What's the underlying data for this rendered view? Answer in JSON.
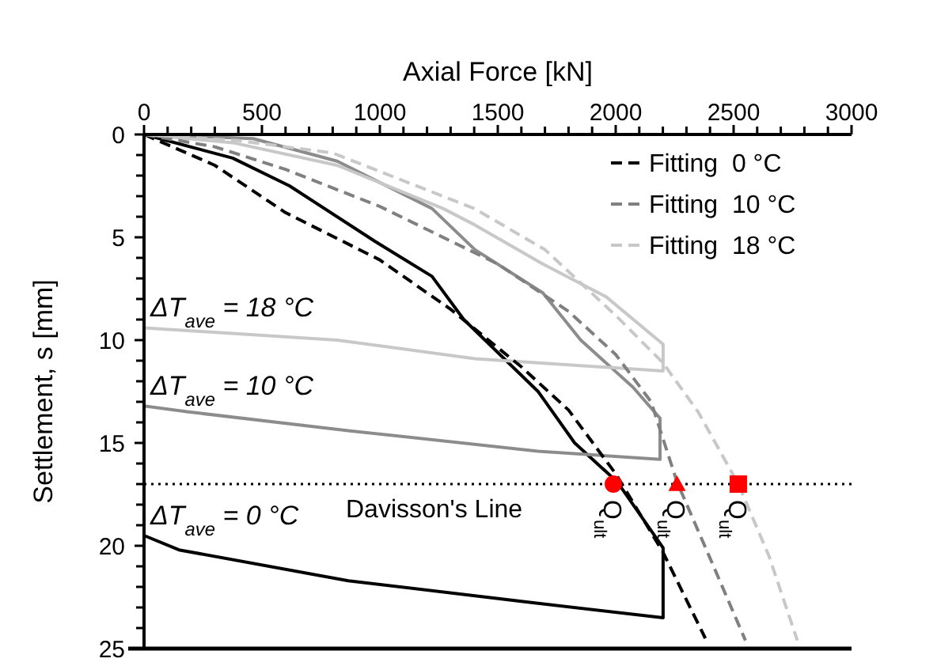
{
  "chart_data": {
    "type": "line",
    "xlabel": "Axial Force [kN]",
    "ylabel": "Settlement, s [mm]",
    "xlim": [
      0,
      3000
    ],
    "ylim": [
      25,
      0
    ],
    "xticks": [
      0,
      {
        "value": 100,
        "label": null
      },
      {
        "value": 200,
        "label": null
      },
      {
        "value": 300,
        "label": null
      },
      {
        "value": 400,
        "label": null
      },
      500,
      {
        "value": 600,
        "label": null
      },
      {
        "value": 700,
        "label": null
      },
      {
        "value": 800,
        "label": null
      },
      {
        "value": 900,
        "label": null
      },
      1000,
      {
        "value": 1100,
        "label": null
      },
      {
        "value": 1200,
        "label": null
      },
      {
        "value": 1300,
        "label": null
      },
      {
        "value": 1400,
        "label": null
      },
      1500,
      {
        "value": 1600,
        "label": null
      },
      {
        "value": 1700,
        "label": null
      },
      {
        "value": 1800,
        "label": null
      },
      {
        "value": 1900,
        "label": null
      },
      2000,
      {
        "value": 2100,
        "label": null
      },
      {
        "value": 2200,
        "label": null
      },
      {
        "value": 2300,
        "label": null
      },
      {
        "value": 2400,
        "label": null
      },
      2500,
      {
        "value": 2600,
        "label": null
      },
      {
        "value": 2700,
        "label": null
      },
      {
        "value": 2800,
        "label": null
      },
      {
        "value": 2900,
        "label": null
      },
      3000
    ],
    "yticks": [
      0,
      {
        "value": 1,
        "label": null
      },
      {
        "value": 2,
        "label": null
      },
      {
        "value": 3,
        "label": null
      },
      {
        "value": 4,
        "label": null
      },
      5,
      {
        "value": 6,
        "label": null
      },
      {
        "value": 7,
        "label": null
      },
      {
        "value": 8,
        "label": null
      },
      {
        "value": 9,
        "label": null
      },
      10,
      {
        "value": 11,
        "label": null
      },
      {
        "value": 12,
        "label": null
      },
      {
        "value": 13,
        "label": null
      },
      {
        "value": 14,
        "label": null
      },
      15,
      {
        "value": 16,
        "label": null
      },
      {
        "value": 17,
        "label": null
      },
      {
        "value": 18,
        "label": null
      },
      {
        "value": 19,
        "label": null
      },
      20,
      {
        "value": 21,
        "label": null
      },
      {
        "value": 22,
        "label": null
      },
      {
        "value": 23,
        "label": null
      },
      {
        "value": 24,
        "label": null
      },
      25
    ],
    "grid": false,
    "legend": "top right",
    "series": [
      {
        "color": "#000000",
        "line_style": "solid",
        "x": [
          0,
          376,
          617,
          980,
          1221,
          1356,
          1671,
          1826,
          2007,
          2201,
          2201,
          1671,
          866,
          148,
          0
        ],
        "values": [
          0,
          1.15,
          2.5,
          5.2,
          6.9,
          9.0,
          12.5,
          15.0,
          16.9,
          20.1,
          23.5,
          22.8,
          21.7,
          20.2,
          19.5
        ]
      },
      {
        "color": "#8c8c8c",
        "line_style": "solid",
        "x": [
          0,
          463,
          819,
          1221,
          1403,
          1691,
          1852,
          2074,
          2188,
          2188,
          1671,
          866,
          195,
          0
        ],
        "values": [
          0,
          0.2,
          1.3,
          3.6,
          5.6,
          7.7,
          10.0,
          12.3,
          13.8,
          15.8,
          15.4,
          14.4,
          13.5,
          13.2
        ]
      },
      {
        "color": "#c8c8c8",
        "line_style": "solid",
        "x": [
          0,
          376,
          819,
          1268,
          1403,
          1691,
          1960,
          2201,
          2201,
          1403,
          819,
          0
        ],
        "values": [
          0,
          0.4,
          1.5,
          3.6,
          4.4,
          6.3,
          7.9,
          10.2,
          11.5,
          10.9,
          10.0,
          9.4
        ]
      },
      {
        "name": "Fitting  0 °C",
        "color": "#000000",
        "line_style": "dashed",
        "x": [
          0,
          300,
          600,
          1000,
          1300,
          1600,
          1800,
          2000,
          2200,
          2380
        ],
        "values": [
          0,
          1.5,
          3.8,
          6.1,
          8.5,
          11.3,
          13.4,
          16.5,
          20.3,
          24.5
        ]
      },
      {
        "name": "Fitting  10 °C",
        "color": "#808080",
        "line_style": "dashed",
        "x": [
          0,
          300,
          600,
          1000,
          1500,
          1800,
          2000,
          2150,
          2260,
          2400,
          2550
        ],
        "values": [
          0,
          0.6,
          1.7,
          3.5,
          6.3,
          8.6,
          10.7,
          13.0,
          16.9,
          20.6,
          24.6
        ]
      },
      {
        "name": "Fitting  18 °C",
        "color": "#c8c8c8",
        "line_style": "dashed",
        "x": [
          0,
          400,
          800,
          1400,
          1700,
          2000,
          2200,
          2350,
          2520,
          2650,
          2770
        ],
        "values": [
          0,
          0.3,
          0.9,
          3.6,
          5.6,
          8.8,
          11.1,
          13.5,
          17.0,
          20.5,
          24.6
        ]
      },
      {
        "type": "scatter",
        "marker": "circle",
        "color": "#ff0000",
        "x": [
          1990
        ],
        "values": [
          17
        ]
      },
      {
        "type": "scatter",
        "marker": "triangle",
        "color": "#ff0000",
        "x": [
          2260
        ],
        "values": [
          17
        ]
      },
      {
        "type": "scatter",
        "marker": "square",
        "color": "#ff0000",
        "x": [
          2520
        ],
        "values": [
          17
        ]
      }
    ],
    "ref_lines": [
      {
        "axis": "y",
        "value": 17,
        "label": "Davisson's Line",
        "color": "#000000",
        "line_style": "dotted"
      }
    ],
    "annotations": [
      {
        "text": "ΔT$_{ave}$ = 18 °C",
        "x": 0,
        "y": 9.4
      },
      {
        "text": "ΔT$_{ave}$ = 10 °C",
        "x": 0,
        "y": 13.2
      },
      {
        "text": "ΔT$_{ave}$= 0 °C",
        "x": 0,
        "y": 19.5
      },
      {
        "text": "Q$_{ult}$",
        "x": 1990,
        "y": 17
      },
      {
        "text": "Q$_{ult}$",
        "x": 2260,
        "y": 17
      },
      {
        "text": "Q$_{ult}$",
        "x": 2520,
        "y": 17
      }
    ]
  }
}
